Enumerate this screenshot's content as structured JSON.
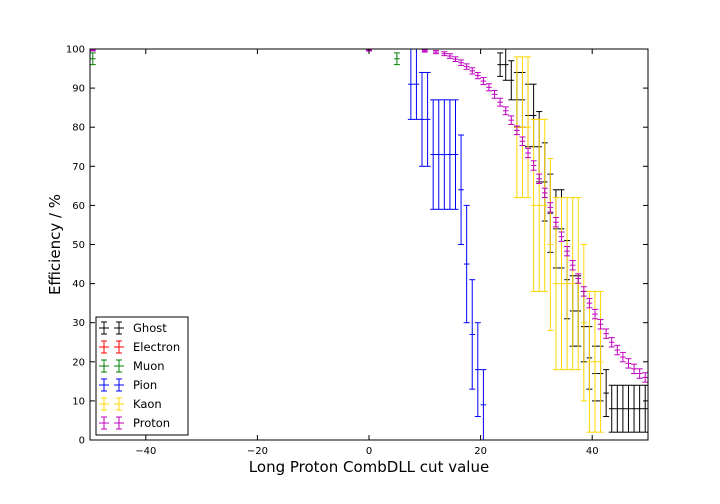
{
  "chart_data": {
    "type": "scatter",
    "title": "",
    "xlabel": "Long Proton CombDLL cut value",
    "ylabel": "Efficiency / %",
    "xlim": [
      -50,
      50
    ],
    "ylim": [
      0,
      100
    ],
    "xticks": [
      -40,
      -20,
      0,
      20,
      40
    ],
    "yticks": [
      0,
      10,
      20,
      30,
      40,
      50,
      60,
      70,
      80,
      90,
      100
    ],
    "grid": false,
    "legend_position": "bottom-left",
    "series": [
      {
        "name": "Ghost",
        "color": "#000000",
        "x": [
          -49.5,
          -20,
          0,
          20,
          22.5,
          23.5,
          24.5,
          25.5,
          26.5,
          27.5,
          28.5,
          29.5,
          30.5,
          31.5,
          32.5,
          33.5,
          34.5,
          35.5,
          36.5,
          37.5,
          38.5,
          39.5,
          40.5,
          41.5,
          42.5,
          43.5,
          44.5,
          45.5,
          46.5,
          47.5,
          48.5,
          49.5
        ],
        "y": [
          100,
          100,
          100,
          100,
          100,
          96,
          96,
          92,
          87,
          87,
          83,
          83,
          75,
          66,
          58,
          54,
          54,
          41,
          33,
          33,
          29,
          21,
          17,
          17,
          12,
          8,
          8,
          8,
          8,
          8,
          8,
          8
        ],
        "yerr": [
          0,
          0,
          0,
          0,
          0,
          3,
          4,
          5,
          7,
          7,
          8,
          8,
          9,
          10,
          10,
          10,
          10,
          10,
          9,
          9,
          9,
          8,
          7,
          7,
          6,
          6,
          6,
          6,
          6,
          6,
          6,
          6
        ]
      },
      {
        "name": "Electron",
        "color": "#ff0000",
        "x": [
          -49.5,
          49.5
        ],
        "y": [
          0,
          0
        ],
        "yerr": [
          0,
          0
        ]
      },
      {
        "name": "Muon",
        "color": "#008000",
        "x": [
          -49.5,
          5
        ],
        "y": [
          97.5,
          97.5
        ],
        "yerr": [
          1.5,
          1.5
        ]
      },
      {
        "name": "Pion",
        "color": "#0000ff",
        "x": [
          6.5,
          7.5,
          8.5,
          9.5,
          10.5,
          11.5,
          12.5,
          13.5,
          14.5,
          15.5,
          16.5,
          17.5,
          18.5,
          19.5,
          20.5
        ],
        "y": [
          100,
          91,
          91,
          82,
          82,
          73,
          73,
          73,
          73,
          73,
          64,
          45,
          27,
          18,
          9
        ],
        "yerr": [
          0,
          9,
          9,
          12,
          12,
          14,
          14,
          14,
          14,
          14,
          14,
          15,
          14,
          12,
          9
        ]
      },
      {
        "name": "Kaon",
        "color": "#ffd700",
        "x": [
          20.5,
          21.5,
          22.5,
          23.5,
          24.5,
          25.5,
          26.5,
          27.5,
          28.5,
          29.5,
          30.5,
          31.5,
          32.5,
          33.5,
          34.5,
          35.5,
          36.5,
          37.5,
          38.5,
          39.5,
          40.5,
          41.5
        ],
        "y": [
          100,
          100,
          100,
          100,
          100,
          100,
          80,
          80,
          80,
          60,
          60,
          60,
          50,
          40,
          40,
          40,
          40,
          40,
          30,
          20,
          20,
          20
        ],
        "yerr": [
          0,
          0,
          0,
          0,
          0,
          0,
          18,
          18,
          18,
          22,
          22,
          22,
          22,
          22,
          22,
          22,
          22,
          22,
          20,
          18,
          18,
          18
        ]
      },
      {
        "name": "Proton",
        "color": "#bf00bf",
        "x": [
          -49.5,
          0,
          10,
          12,
          13.5,
          14.5,
          15.5,
          16.5,
          17.5,
          18.5,
          19.5,
          20.5,
          21.5,
          22.5,
          23.5,
          24.5,
          25.5,
          26.5,
          27.5,
          28.5,
          29.5,
          30.5,
          31.5,
          32.5,
          33.5,
          34.5,
          35.5,
          36.5,
          37.5,
          38.5,
          39.5,
          40.5,
          41.5,
          42.5,
          43.5,
          44.5,
          45.5,
          46.5,
          47.5,
          48.5,
          49.5
        ],
        "y": [
          99.7,
          99.7,
          99.5,
          99.2,
          98.8,
          98.2,
          97.4,
          96.5,
          95.5,
          94.4,
          93.2,
          91.8,
          90.2,
          88.4,
          86.4,
          84.2,
          81.8,
          79.2,
          76.4,
          73.4,
          70.2,
          66.8,
          63.2,
          59.5,
          55.7,
          52.0,
          48.3,
          44.7,
          41.3,
          38.0,
          35.0,
          32.2,
          29.6,
          27.2,
          25.0,
          23.0,
          21.2,
          19.6,
          18.2,
          17.0,
          16.0
        ],
        "yerr": [
          0.2,
          0.2,
          0.3,
          0.4,
          0.5,
          0.6,
          0.6,
          0.7,
          0.7,
          0.8,
          0.8,
          0.9,
          0.9,
          1.0,
          1.0,
          1.0,
          1.1,
          1.1,
          1.1,
          1.2,
          1.2,
          1.2,
          1.2,
          1.2,
          1.2,
          1.2,
          1.2,
          1.2,
          1.2,
          1.2,
          1.2,
          1.2,
          1.2,
          1.2,
          1.2,
          1.2,
          1.2,
          1.2,
          1.2,
          1.2,
          1.2
        ]
      }
    ]
  }
}
